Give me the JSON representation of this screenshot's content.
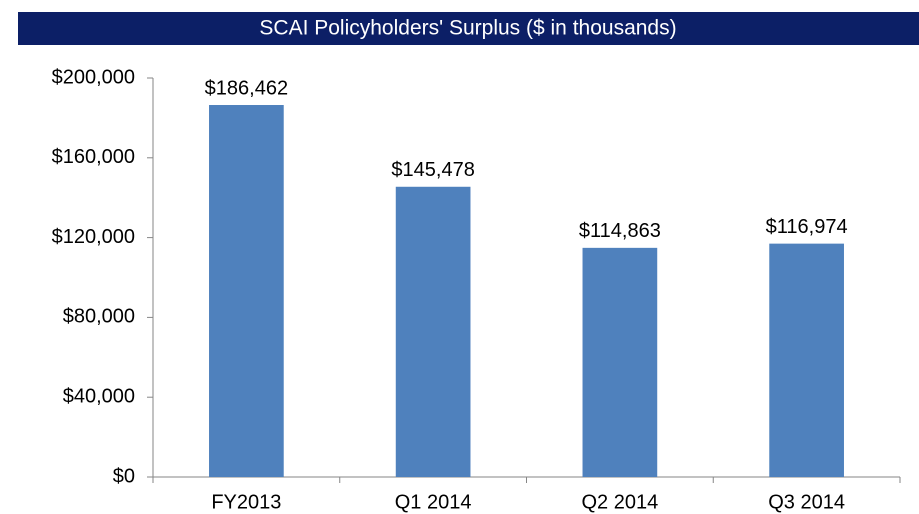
{
  "chart_data": {
    "type": "bar",
    "title": "SCAI Policyholders' Surplus ($ in thousands)",
    "categories": [
      "FY2013",
      "Q1 2014",
      "Q2 2014",
      "Q3 2014"
    ],
    "values": [
      186462,
      145478,
      114863,
      116974
    ],
    "value_labels": [
      "$186,462",
      "$145,478",
      "$114,863",
      "$116,974"
    ],
    "color": "#4f81bd",
    "ylim": [
      0,
      200000
    ],
    "yticks": [
      {
        "value": 0,
        "label": "$0"
      },
      {
        "value": 40000,
        "label": "$40,000"
      },
      {
        "value": 80000,
        "label": "$80,000"
      },
      {
        "value": 120000,
        "label": "$120,000"
      },
      {
        "value": 160000,
        "label": "$160,000"
      },
      {
        "value": 200000,
        "label": "$200,000"
      }
    ],
    "grid": false
  }
}
